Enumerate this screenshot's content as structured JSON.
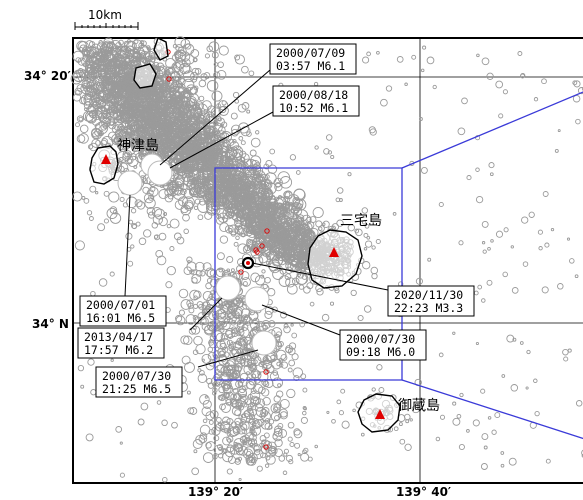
{
  "scale_bar": {
    "label": "10km"
  },
  "lat_labels": [
    "34° 20′",
    "34° N"
  ],
  "lon_labels": [
    "139° 20′",
    "139° 40′"
  ],
  "islands": [
    {
      "name": "神津島"
    },
    {
      "name": "三宅島"
    },
    {
      "name": "御蔵島"
    }
  ],
  "events": [
    {
      "date": "2000/07/09",
      "detail": "03:57 M6.1"
    },
    {
      "date": "2000/08/18",
      "detail": "10:52 M6.1"
    },
    {
      "date": "2000/07/01",
      "detail": "16:01 M6.5"
    },
    {
      "date": "2013/04/17",
      "detail": "17:57 M6.2"
    },
    {
      "date": "2000/07/30",
      "detail": "21:25 M6.5"
    },
    {
      "date": "2000/07/30",
      "detail": "09:18 M6.0"
    },
    {
      "date": "2020/11/30",
      "detail": "22:23 M3.3"
    }
  ],
  "colors": {
    "hypocenter": "#9a9a9a",
    "recent_event": "#e00000",
    "volcano_marker": "#e00000",
    "region_outline": "#3a3ad8",
    "grid": "#000000"
  }
}
